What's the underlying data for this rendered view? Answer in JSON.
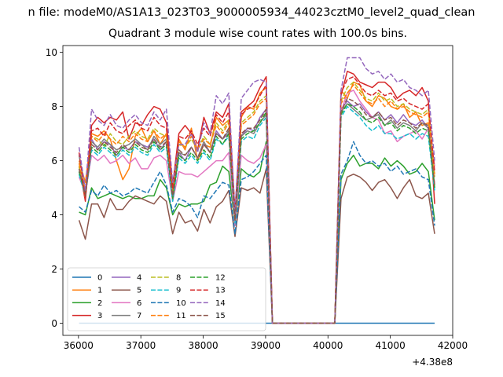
{
  "chart_data": {
    "type": "line",
    "suptitle": "n file: modeM0/AS1A13_023T03_9000005934_44023cztM0_level2_quad_clean",
    "title": "Quadrant 3 module wise count rates with 100.0s bins.",
    "xlabel": "",
    "ylabel": "",
    "x_offset_label": "+4.38e8",
    "xlim": [
      35750,
      42000
    ],
    "ylim": [
      -0.45,
      10.25
    ],
    "x_ticks": [
      36000,
      37000,
      38000,
      39000,
      40000,
      41000,
      42000
    ],
    "x_tick_labels": [
      "36000",
      "37000",
      "38000",
      "39000",
      "40000",
      "41000",
      "42000"
    ],
    "y_ticks": [
      0,
      2,
      4,
      6,
      8,
      10
    ],
    "y_tick_labels": [
      "0",
      "2",
      "4",
      "6",
      "8",
      "10"
    ],
    "x": [
      36010,
      36110,
      36210,
      36310,
      36410,
      36510,
      36610,
      36710,
      36810,
      36910,
      37010,
      37110,
      37210,
      37310,
      37410,
      37510,
      37610,
      37710,
      37810,
      37910,
      38010,
      38110,
      38210,
      38310,
      38410,
      38510,
      38610,
      38710,
      38810,
      38910,
      39010,
      39110,
      40110,
      40210,
      40310,
      40410,
      40510,
      40610,
      40710,
      40810,
      40910,
      41010,
      41110,
      41210,
      41310,
      41410,
      41510,
      41610,
      41710
    ],
    "legend": {
      "position": "lower-left",
      "columns": 5
    },
    "series": [
      {
        "name": "0",
        "color": "#1f77b4",
        "dash": "solid",
        "values": [
          0,
          0,
          0,
          0,
          0,
          0,
          0,
          0,
          0,
          0,
          0,
          0,
          0,
          0,
          0,
          0,
          0,
          0,
          0,
          0,
          0,
          0,
          0,
          0,
          0,
          0,
          0,
          0,
          0,
          0,
          0,
          0,
          0,
          0,
          0,
          0,
          0,
          0,
          0,
          0,
          0,
          0,
          0,
          0,
          0,
          0,
          0,
          0,
          0
        ]
      },
      {
        "name": "1",
        "color": "#ff7f0e",
        "dash": "solid",
        "values": [
          6.0,
          5.2,
          7.0,
          6.9,
          7.1,
          6.8,
          6.0,
          5.3,
          5.7,
          6.9,
          7.2,
          6.7,
          7.1,
          6.6,
          7.0,
          5.0,
          6.8,
          6.4,
          7.2,
          6.0,
          6.6,
          6.5,
          7.6,
          7.3,
          7.5,
          3.9,
          7.6,
          8.0,
          7.9,
          8.5,
          8.7,
          0.0,
          0.0,
          8.6,
          8.3,
          8.9,
          8.8,
          8.2,
          8.0,
          8.4,
          8.3,
          8.0,
          7.9,
          8.1,
          7.6,
          7.8,
          7.3,
          7.4,
          5.8
        ]
      },
      {
        "name": "2",
        "color": "#2ca02c",
        "dash": "solid",
        "values": [
          4.1,
          4.0,
          5.0,
          4.6,
          4.7,
          4.8,
          4.7,
          4.6,
          4.7,
          4.6,
          4.6,
          4.7,
          4.7,
          5.3,
          5.0,
          4.0,
          4.4,
          4.3,
          4.4,
          4.4,
          4.5,
          5.1,
          5.2,
          5.8,
          5.6,
          3.6,
          5.7,
          5.5,
          5.4,
          5.6,
          6.7,
          0.0,
          0.0,
          5.3,
          5.9,
          6.2,
          5.8,
          5.9,
          5.9,
          5.7,
          6.1,
          5.8,
          6.0,
          5.8,
          5.5,
          5.6,
          5.9,
          5.6,
          3.8
        ]
      },
      {
        "name": "3",
        "color": "#d62728",
        "dash": "solid",
        "values": [
          5.8,
          4.5,
          7.3,
          7.6,
          7.4,
          7.6,
          7.5,
          7.8,
          6.8,
          7.4,
          7.3,
          7.7,
          8.0,
          7.9,
          7.4,
          5.1,
          7.0,
          7.3,
          7.0,
          6.4,
          7.6,
          7.0,
          7.8,
          7.6,
          8.1,
          4.1,
          7.8,
          8.0,
          8.2,
          8.7,
          9.1,
          0.0,
          0.0,
          8.4,
          9.3,
          9.2,
          8.9,
          8.8,
          8.7,
          8.9,
          8.9,
          8.7,
          8.3,
          8.5,
          8.6,
          8.4,
          8.7,
          8.2,
          4.4
        ]
      },
      {
        "name": "4",
        "color": "#9467bd",
        "dash": "solid",
        "values": [
          5.6,
          4.7,
          6.8,
          6.4,
          6.7,
          6.6,
          6.2,
          6.5,
          6.4,
          6.7,
          6.6,
          6.5,
          6.8,
          6.4,
          6.7,
          4.7,
          6.3,
          6.0,
          6.5,
          6.1,
          6.6,
          6.3,
          7.1,
          6.8,
          7.0,
          3.8,
          6.9,
          7.2,
          7.1,
          7.6,
          7.9,
          0.0,
          0.0,
          7.9,
          8.2,
          8.0,
          8.1,
          7.8,
          7.6,
          7.8,
          7.5,
          7.7,
          7.4,
          7.7,
          7.4,
          7.3,
          7.5,
          7.2,
          5.0
        ]
      },
      {
        "name": "5",
        "color": "#8c564b",
        "dash": "solid",
        "values": [
          3.8,
          3.1,
          4.4,
          4.4,
          3.9,
          4.6,
          4.2,
          4.2,
          4.5,
          4.7,
          4.6,
          4.5,
          4.4,
          4.7,
          4.5,
          3.3,
          4.1,
          3.7,
          3.8,
          3.4,
          4.2,
          3.7,
          4.3,
          4.5,
          4.9,
          3.2,
          5.0,
          4.9,
          5.0,
          4.8,
          5.7,
          0.0,
          0.0,
          4.6,
          5.4,
          5.5,
          5.4,
          5.2,
          4.9,
          5.2,
          5.3,
          5.0,
          4.6,
          5.0,
          5.3,
          4.7,
          4.6,
          4.8,
          3.3
        ]
      },
      {
        "name": "6",
        "color": "#e377c2",
        "dash": "solid",
        "values": [
          5.4,
          4.8,
          6.2,
          6.0,
          6.2,
          5.9,
          6.0,
          6.2,
          5.9,
          6.1,
          5.7,
          5.7,
          6.1,
          6.2,
          6.0,
          4.5,
          5.6,
          5.5,
          5.5,
          5.4,
          5.6,
          5.8,
          6.0,
          6.0,
          6.3,
          3.6,
          6.2,
          6.0,
          5.9,
          6.1,
          6.6,
          0.0,
          0.0,
          7.8,
          8.5,
          8.6,
          8.2,
          7.9,
          7.6,
          7.5,
          7.0,
          7.1,
          6.7,
          6.9,
          7.0,
          7.1,
          6.8,
          7.2,
          5.8
        ]
      },
      {
        "name": "7",
        "color": "#7f7f7f",
        "dash": "solid",
        "values": [
          6.2,
          4.8,
          6.7,
          6.5,
          6.8,
          6.6,
          6.4,
          6.5,
          6.6,
          6.8,
          6.6,
          6.4,
          6.9,
          6.6,
          6.8,
          4.6,
          6.3,
          6.2,
          6.5,
          6.1,
          6.7,
          6.3,
          7.0,
          6.8,
          7.1,
          3.9,
          6.9,
          7.1,
          7.0,
          7.4,
          7.7,
          0.0,
          0.0,
          7.8,
          8.1,
          7.9,
          7.7,
          7.5,
          7.6,
          7.7,
          7.3,
          7.5,
          7.2,
          7.4,
          7.3,
          7.1,
          7.4,
          7.2,
          5.1
        ]
      },
      {
        "name": "8",
        "color": "#bcbd22",
        "dash": "dashed",
        "values": [
          5.8,
          4.6,
          6.9,
          6.8,
          6.5,
          7.0,
          6.7,
          6.6,
          6.9,
          7.1,
          6.9,
          6.8,
          7.2,
          7.0,
          6.9,
          4.8,
          6.6,
          6.5,
          6.8,
          6.4,
          6.9,
          6.6,
          7.4,
          7.1,
          7.5,
          4.0,
          7.4,
          7.6,
          7.8,
          8.2,
          8.4,
          0.0,
          0.0,
          8.2,
          8.7,
          8.9,
          8.6,
          8.3,
          8.2,
          8.5,
          8.2,
          8.3,
          8.0,
          8.1,
          7.9,
          7.8,
          7.7,
          7.9,
          5.4
        ]
      },
      {
        "name": "9",
        "color": "#17becf",
        "dash": "dashed",
        "values": [
          5.5,
          4.7,
          6.4,
          6.2,
          6.5,
          6.3,
          6.1,
          6.4,
          6.2,
          6.5,
          6.3,
          6.2,
          6.6,
          6.3,
          6.5,
          4.5,
          6.1,
          5.9,
          6.2,
          5.9,
          6.3,
          6.0,
          6.8,
          6.6,
          6.9,
          3.7,
          6.7,
          6.9,
          6.8,
          7.3,
          7.6,
          0.0,
          0.0,
          7.6,
          8.0,
          7.8,
          7.6,
          7.3,
          7.1,
          7.3,
          7.0,
          7.0,
          6.8,
          6.9,
          7.0,
          6.8,
          7.0,
          6.9,
          4.9
        ]
      },
      {
        "name": "10",
        "color": "#1f77b4",
        "dash": "dashed",
        "values": [
          4.3,
          4.1,
          4.9,
          4.7,
          5.1,
          4.8,
          4.9,
          4.7,
          4.8,
          5.0,
          4.9,
          4.8,
          5.2,
          5.6,
          5.1,
          4.1,
          4.6,
          4.5,
          4.3,
          3.9,
          4.7,
          4.6,
          4.9,
          5.2,
          5.1,
          3.3,
          5.3,
          5.4,
          5.6,
          5.9,
          6.2,
          0.0,
          0.0,
          5.5,
          6.0,
          6.7,
          6.2,
          5.9,
          6.0,
          5.8,
          5.9,
          5.6,
          5.8,
          5.5,
          5.6,
          5.7,
          5.4,
          5.3,
          3.6
        ]
      },
      {
        "name": "11",
        "color": "#ff7f0e",
        "dash": "dashed",
        "values": [
          5.9,
          4.9,
          6.9,
          6.7,
          7.0,
          6.8,
          6.6,
          6.9,
          6.7,
          7.0,
          6.8,
          6.7,
          7.1,
          6.8,
          7.0,
          4.9,
          6.7,
          6.5,
          6.9,
          6.4,
          6.8,
          6.6,
          7.3,
          7.0,
          7.4,
          3.9,
          7.3,
          7.5,
          7.7,
          8.1,
          8.3,
          0.0,
          0.0,
          8.1,
          8.5,
          8.8,
          8.5,
          8.2,
          8.1,
          8.3,
          8.0,
          8.2,
          7.9,
          8.0,
          7.8,
          7.7,
          7.6,
          7.8,
          5.5
        ]
      },
      {
        "name": "12",
        "color": "#2ca02c",
        "dash": "dashed",
        "values": [
          5.6,
          4.8,
          6.5,
          6.3,
          6.6,
          6.4,
          6.2,
          6.5,
          6.3,
          6.6,
          6.4,
          6.3,
          6.7,
          6.4,
          6.6,
          4.6,
          6.2,
          6.0,
          6.3,
          6.0,
          6.4,
          6.1,
          6.9,
          6.6,
          7.0,
          3.8,
          6.8,
          7.0,
          7.1,
          7.4,
          7.8,
          0.0,
          0.0,
          7.7,
          8.1,
          8.0,
          7.8,
          7.5,
          7.4,
          7.6,
          7.3,
          7.4,
          7.1,
          7.3,
          7.2,
          7.0,
          7.2,
          7.1,
          5.0
        ]
      },
      {
        "name": "13",
        "color": "#d62728",
        "dash": "dashed",
        "values": [
          6.3,
          4.6,
          7.1,
          7.2,
          6.9,
          7.4,
          7.1,
          7.0,
          7.3,
          7.5,
          7.2,
          7.1,
          7.6,
          7.3,
          7.2,
          5.0,
          6.9,
          6.8,
          7.1,
          6.6,
          7.2,
          6.9,
          7.7,
          7.4,
          7.8,
          4.1,
          7.7,
          7.9,
          8.0,
          8.4,
          8.8,
          0.0,
          0.0,
          8.5,
          9.0,
          9.1,
          8.8,
          8.5,
          8.4,
          8.6,
          8.4,
          8.5,
          8.2,
          8.3,
          8.1,
          8.0,
          7.9,
          8.1,
          5.6
        ]
      },
      {
        "name": "14",
        "color": "#9467bd",
        "dash": "dashed",
        "values": [
          6.5,
          4.9,
          7.9,
          7.5,
          7.3,
          7.7,
          7.3,
          7.2,
          7.5,
          7.7,
          7.4,
          7.3,
          7.8,
          7.5,
          7.9,
          5.2,
          6.6,
          6.6,
          7.0,
          6.3,
          7.4,
          7.0,
          8.4,
          8.1,
          8.5,
          4.0,
          8.3,
          8.6,
          8.9,
          9.0,
          8.9,
          0.0,
          0.0,
          8.6,
          9.8,
          9.8,
          9.8,
          9.4,
          9.2,
          9.3,
          9.0,
          9.2,
          8.9,
          9.0,
          8.7,
          8.6,
          8.4,
          8.6,
          6.0
        ]
      },
      {
        "name": "15",
        "color": "#8c564b",
        "dash": "dashed",
        "values": [
          5.7,
          4.7,
          6.6,
          6.4,
          6.7,
          6.5,
          6.3,
          6.6,
          6.4,
          6.7,
          6.5,
          6.4,
          6.8,
          6.5,
          6.7,
          4.7,
          6.4,
          6.2,
          6.5,
          6.1,
          6.6,
          6.3,
          7.0,
          6.8,
          7.2,
          3.8,
          7.0,
          7.2,
          7.2,
          7.5,
          7.9,
          0.0,
          0.0,
          7.8,
          8.3,
          8.2,
          8.0,
          7.7,
          7.6,
          7.8,
          7.5,
          7.6,
          7.3,
          7.5,
          7.4,
          7.2,
          7.4,
          7.3,
          5.1
        ]
      }
    ]
  }
}
